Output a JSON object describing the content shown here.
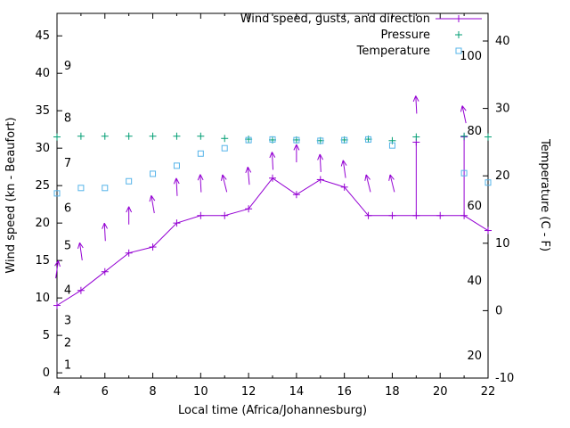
{
  "chart_data": {
    "type": "line",
    "title": "",
    "xlabel": "Local time (Africa/Johannesburg)",
    "ylabel": "Wind speed (kn - Beaufort)",
    "y2label": "Temperature (C - F)",
    "x_range": [
      4,
      22
    ],
    "x_ticks": [
      4,
      6,
      8,
      10,
      12,
      14,
      16,
      18,
      20,
      22
    ],
    "x_minor_step": 1,
    "y_left": {
      "min": -0.7,
      "max": 48,
      "ticks": [
        0,
        5,
        10,
        15,
        20,
        25,
        30,
        35,
        40,
        45
      ],
      "inner_scale_name": "Beaufort",
      "beaufort_labels": [
        "1",
        "2",
        "3",
        "4",
        "5",
        "6",
        "7",
        "8",
        "9"
      ],
      "beaufort_kn": [
        1,
        4,
        7,
        11,
        17,
        22,
        28,
        34,
        41
      ]
    },
    "y_right": {
      "min": -10,
      "max": 44.1,
      "ticks": [
        -10,
        0,
        10,
        20,
        30,
        40
      ],
      "inner_scale_name": "Fahrenheit",
      "fahrenheit_labels": [
        "20",
        "40",
        "60",
        "80",
        "100"
      ]
    },
    "hours": [
      4,
      5,
      6,
      7,
      8,
      9,
      10,
      11,
      12,
      13,
      14,
      15,
      16,
      17,
      18,
      19,
      20,
      21,
      22
    ],
    "series": [
      {
        "name": "Wind speed, gusts, and direction",
        "color": "#9400d3",
        "axis": "left",
        "wind_kn": [
          9,
          11,
          13.5,
          16,
          16.8,
          20,
          21,
          21,
          21.9,
          26,
          23.8,
          25.8,
          24.8,
          21,
          21,
          21,
          21,
          21,
          19
        ],
        "gust_kn": [
          null,
          null,
          null,
          null,
          null,
          null,
          null,
          null,
          null,
          null,
          null,
          null,
          null,
          null,
          null,
          30.8,
          null,
          31.5,
          null
        ],
        "arrow_kn": [
          13.8,
          16.2,
          18.8,
          21,
          22.5,
          24.8,
          25.3,
          25.3,
          26.3,
          28.3,
          29.3,
          28,
          27.2,
          25.3,
          25.3,
          35.8,
          null,
          34.5,
          null
        ],
        "arrow_angle_deg": [
          8,
          -8,
          -3,
          0,
          -10,
          -3,
          -3,
          -14,
          -5,
          -3,
          0,
          -3,
          -8,
          -14,
          -14,
          -3,
          null,
          -12,
          null
        ]
      },
      {
        "name": "Pressure",
        "color": "#009e73",
        "axis": "left-unlabeled",
        "values": [
          31.5,
          31.6,
          31.6,
          31.6,
          31.6,
          31.6,
          31.6,
          31.3,
          31.2,
          31.1,
          31.1,
          31.0,
          31.1,
          31.2,
          31.0,
          31.5,
          null,
          31.6,
          31.5
        ]
      },
      {
        "name": "Temperature",
        "color": "#56b4e9",
        "axis": "right",
        "values_c": [
          17.4,
          18.2,
          18.2,
          19.2,
          20.3,
          21.5,
          23.3,
          24.1,
          25.3,
          25.4,
          25.3,
          25.2,
          25.3,
          25.4,
          24.5,
          null,
          null,
          20.4,
          19.0
        ]
      }
    ],
    "legend": {
      "position": "top-right-inside",
      "entries": [
        "Wind speed, gusts, and direction",
        "Pressure",
        "Temperature"
      ]
    }
  }
}
